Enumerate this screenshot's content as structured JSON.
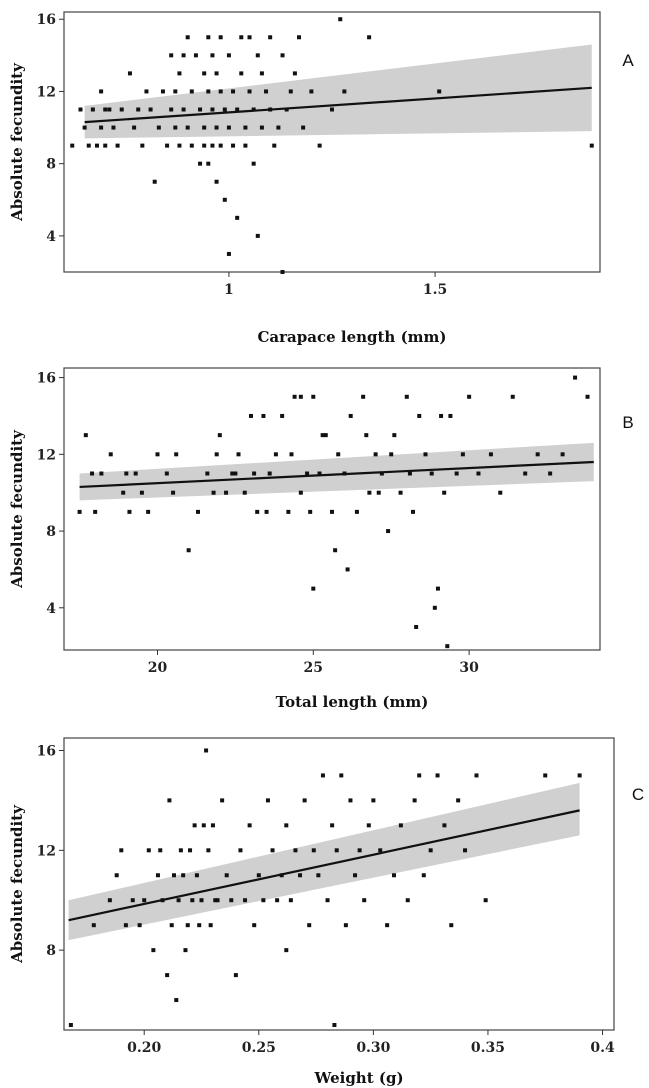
{
  "chart_data": [
    {
      "type": "scatter",
      "panel_label": "A",
      "xlabel": "Carapace length (mm)",
      "ylabel": "Absolute fecundity",
      "xlim": [
        0.6,
        1.9
      ],
      "ylim": [
        2,
        16.4
      ],
      "xticks": [
        1.0,
        1.5
      ],
      "yticks": [
        4,
        8,
        12,
        16
      ],
      "grid": false,
      "fit": {
        "x": [
          0.65,
          1.88
        ],
        "y": [
          10.3,
          12.2
        ],
        "ci_lower": [
          9.4,
          9.8
        ],
        "ci_upper": [
          11.2,
          14.6
        ]
      },
      "x": [
        0.62,
        0.64,
        0.65,
        0.66,
        0.67,
        0.68,
        0.69,
        0.69,
        0.7,
        0.7,
        0.71,
        0.72,
        0.73,
        0.74,
        0.76,
        0.77,
        0.78,
        0.79,
        0.8,
        0.81,
        0.82,
        0.83,
        0.84,
        0.85,
        0.86,
        0.86,
        0.87,
        0.87,
        0.88,
        0.88,
        0.89,
        0.89,
        0.9,
        0.9,
        0.91,
        0.91,
        0.92,
        0.93,
        0.93,
        0.94,
        0.94,
        0.94,
        0.95,
        0.95,
        0.95,
        0.96,
        0.96,
        0.96,
        0.97,
        0.97,
        0.97,
        0.98,
        0.98,
        0.98,
        0.99,
        0.99,
        1.0,
        1.0,
        1.0,
        1.01,
        1.01,
        1.02,
        1.02,
        1.03,
        1.03,
        1.04,
        1.04,
        1.05,
        1.05,
        1.06,
        1.06,
        1.07,
        1.07,
        1.08,
        1.08,
        1.09,
        1.1,
        1.1,
        1.11,
        1.12,
        1.13,
        1.13,
        1.14,
        1.15,
        1.16,
        1.17,
        1.18,
        1.2,
        1.22,
        1.25,
        1.27,
        1.28,
        1.34,
        1.51,
        1.88
      ],
      "y": [
        9,
        11,
        10,
        9,
        11,
        9,
        12,
        10,
        11,
        9,
        11,
        10,
        9,
        11,
        13,
        10,
        11,
        9,
        12,
        11,
        7,
        10,
        12,
        9,
        11,
        14,
        10,
        12,
        13,
        9,
        11,
        14,
        10,
        15,
        9,
        12,
        14,
        8,
        11,
        13,
        10,
        9,
        15,
        8,
        12,
        11,
        14,
        9,
        10,
        13,
        7,
        12,
        9,
        15,
        6,
        11,
        10,
        14,
        3,
        9,
        12,
        11,
        5,
        13,
        15,
        10,
        9,
        15,
        12,
        8,
        11,
        4,
        14,
        13,
        10,
        12,
        11,
        15,
        9,
        10,
        2,
        14,
        11,
        12,
        13,
        15,
        10,
        12,
        9,
        11,
        16,
        12,
        15,
        12,
        9
      ]
    },
    {
      "type": "scatter",
      "panel_label": "B",
      "xlabel": "Total length (mm)",
      "ylabel": "Absolute fecundity",
      "xlim": [
        17,
        34.2
      ],
      "ylim": [
        1.8,
        16.5
      ],
      "xticks": [
        20,
        25,
        30
      ],
      "yticks": [
        4,
        8,
        12,
        16
      ],
      "grid": false,
      "fit": {
        "x": [
          17.5,
          34.0
        ],
        "y": [
          10.3,
          11.6
        ],
        "ci_lower": [
          9.6,
          10.6
        ],
        "ci_upper": [
          11.0,
          12.6
        ]
      },
      "x": [
        17.5,
        17.7,
        17.9,
        18.0,
        18.2,
        18.5,
        18.9,
        19.1,
        19.3,
        19.5,
        19.7,
        20.0,
        20.3,
        20.6,
        21.0,
        21.3,
        21.6,
        21.8,
        22.0,
        22.2,
        22.4,
        22.6,
        22.8,
        23.0,
        23.2,
        23.4,
        23.6,
        23.8,
        24.0,
        24.2,
        24.4,
        24.6,
        24.8,
        25.0,
        25.0,
        25.2,
        25.4,
        25.6,
        25.8,
        26.0,
        26.2,
        26.4,
        26.6,
        26.8,
        27.0,
        27.2,
        27.4,
        27.6,
        27.8,
        28.0,
        28.2,
        28.4,
        28.6,
        28.8,
        29.0,
        29.2,
        29.4,
        29.6,
        29.8,
        30.0,
        30.3,
        30.7,
        31.0,
        31.4,
        31.8,
        32.2,
        32.6,
        33.0,
        33.4,
        33.8,
        22.5,
        23.5,
        24.3,
        25.3,
        26.1,
        27.1,
        28.3,
        29.3,
        27.5,
        28.9,
        26.7,
        24.9,
        23.1,
        20.5,
        19.0,
        21.9,
        25.7,
        28.1,
        29.1,
        24.6
      ],
      "y": [
        9,
        13,
        11,
        9,
        11,
        12,
        10,
        9,
        11,
        10,
        9,
        12,
        11,
        12,
        7,
        9,
        11,
        10,
        13,
        10,
        11,
        12,
        10,
        14,
        9,
        14,
        11,
        12,
        14,
        9,
        15,
        10,
        11,
        15,
        5,
        11,
        13,
        9,
        12,
        11,
        14,
        9,
        15,
        10,
        12,
        11,
        8,
        13,
        10,
        15,
        9,
        14,
        12,
        11,
        5,
        10,
        14,
        11,
        12,
        15,
        11,
        12,
        10,
        15,
        11,
        12,
        11,
        12,
        16,
        15,
        11,
        9,
        12,
        13,
        6,
        10,
        3,
        2,
        12,
        4,
        13,
        9,
        11,
        10,
        11,
        12,
        7,
        11,
        14,
        15
      ]
    },
    {
      "type": "scatter",
      "panel_label": "C",
      "xlabel": "Weight (g)",
      "ylabel": "Absolute fecundity",
      "xlim": [
        0.165,
        0.405
      ],
      "ylim": [
        4.8,
        16.5
      ],
      "xticks": [
        0.2,
        0.25,
        0.3,
        0.35,
        0.4
      ],
      "xtick_labels": [
        "0.20",
        "0.25",
        "0.30",
        "0.35",
        "0.4"
      ],
      "yticks": [
        8,
        12,
        16
      ],
      "grid": false,
      "fit": {
        "x": [
          0.167,
          0.39
        ],
        "y": [
          9.2,
          13.6
        ],
        "ci_lower": [
          8.4,
          12.6
        ],
        "ci_upper": [
          10.0,
          14.7
        ]
      },
      "x": [
        0.168,
        0.178,
        0.185,
        0.188,
        0.19,
        0.192,
        0.195,
        0.198,
        0.2,
        0.202,
        0.204,
        0.206,
        0.208,
        0.21,
        0.211,
        0.212,
        0.213,
        0.214,
        0.215,
        0.216,
        0.217,
        0.218,
        0.219,
        0.22,
        0.221,
        0.222,
        0.223,
        0.224,
        0.225,
        0.226,
        0.227,
        0.228,
        0.229,
        0.23,
        0.232,
        0.234,
        0.236,
        0.238,
        0.24,
        0.242,
        0.244,
        0.246,
        0.248,
        0.25,
        0.252,
        0.254,
        0.256,
        0.258,
        0.26,
        0.262,
        0.264,
        0.266,
        0.268,
        0.27,
        0.272,
        0.274,
        0.276,
        0.278,
        0.28,
        0.282,
        0.284,
        0.286,
        0.288,
        0.29,
        0.292,
        0.294,
        0.296,
        0.298,
        0.3,
        0.303,
        0.306,
        0.309,
        0.312,
        0.315,
        0.318,
        0.32,
        0.322,
        0.325,
        0.328,
        0.331,
        0.334,
        0.337,
        0.34,
        0.345,
        0.349,
        0.375,
        0.39,
        0.207,
        0.231,
        0.262,
        0.283
      ],
      "y": [
        5,
        9,
        10,
        11,
        12,
        9,
        10,
        9,
        10,
        12,
        8,
        11,
        10,
        7,
        14,
        9,
        11,
        6,
        10,
        12,
        11,
        8,
        9,
        12,
        10,
        13,
        11,
        9,
        10,
        13,
        16,
        12,
        9,
        13,
        10,
        14,
        11,
        10,
        7,
        12,
        10,
        13,
        9,
        11,
        10,
        14,
        12,
        10,
        11,
        13,
        10,
        12,
        11,
        14,
        9,
        12,
        11,
        15,
        10,
        13,
        12,
        15,
        9,
        14,
        11,
        12,
        10,
        13,
        14,
        12,
        9,
        11,
        13,
        10,
        14,
        15,
        11,
        12,
        15,
        13,
        9,
        14,
        12,
        15,
        10,
        15,
        15,
        12,
        10,
        8,
        5
      ]
    }
  ]
}
